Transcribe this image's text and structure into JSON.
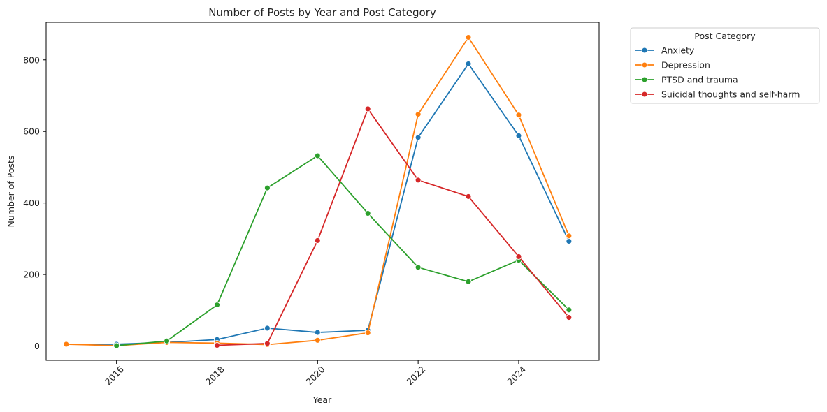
{
  "chart_data": {
    "type": "line",
    "title": "Number of Posts by Year and Post Category",
    "xlabel": "Year",
    "ylabel": "Number of Posts",
    "xlim": [
      2014.6,
      2025.6
    ],
    "ylim": [
      -40,
      905
    ],
    "xticks": [
      2016,
      2018,
      2020,
      2022,
      2024
    ],
    "yticks": [
      0,
      200,
      400,
      600,
      800
    ],
    "grid": false,
    "legend": {
      "title": "Post Category",
      "placement": "outside-top-right"
    },
    "series": [
      {
        "name": "Anxiety",
        "color": "#1f77b4",
        "points": [
          [
            2015,
            5
          ],
          [
            2016,
            5
          ],
          [
            2017,
            10
          ],
          [
            2018,
            18
          ],
          [
            2019,
            50
          ],
          [
            2020,
            38
          ],
          [
            2021,
            44
          ],
          [
            2022,
            583
          ],
          [
            2023,
            789
          ],
          [
            2024,
            588
          ],
          [
            2025,
            293
          ]
        ]
      },
      {
        "name": "Depression",
        "color": "#ff7f0e",
        "points": [
          [
            2015,
            5
          ],
          [
            2016,
            1
          ],
          [
            2017,
            10
          ],
          [
            2018,
            8
          ],
          [
            2019,
            4
          ],
          [
            2020,
            16
          ],
          [
            2021,
            37
          ],
          [
            2022,
            648
          ],
          [
            2023,
            863
          ],
          [
            2024,
            646
          ],
          [
            2025,
            308
          ]
        ]
      },
      {
        "name": "PTSD and trauma",
        "color": "#2ca02c",
        "points": [
          [
            2016,
            1
          ],
          [
            2017,
            14
          ],
          [
            2018,
            115
          ],
          [
            2019,
            442
          ],
          [
            2020,
            532
          ],
          [
            2021,
            371
          ],
          [
            2022,
            220
          ],
          [
            2023,
            180
          ],
          [
            2024,
            240
          ],
          [
            2025,
            101
          ]
        ]
      },
      {
        "name": "Suicidal thoughts and self-harm",
        "color": "#d62728",
        "points": [
          [
            2018,
            2
          ],
          [
            2019,
            7
          ],
          [
            2020,
            295
          ],
          [
            2021,
            663
          ],
          [
            2022,
            464
          ],
          [
            2023,
            418
          ],
          [
            2024,
            250
          ],
          [
            2025,
            80
          ]
        ]
      }
    ]
  }
}
